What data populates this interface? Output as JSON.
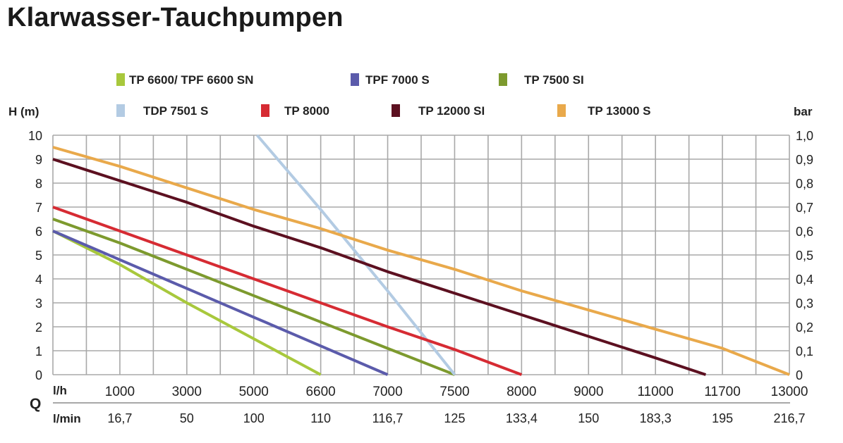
{
  "chart_data": {
    "type": "line",
    "title": "Klarwasser-Tauchpumpen",
    "ylabel_left": "H (m)",
    "ylabel_right": "bar",
    "xlabel": "Q",
    "x_row_labels": [
      "l/h",
      "l/min"
    ],
    "categories_lh": [
      "1000",
      "3000",
      "5000",
      "6600",
      "7000",
      "7500",
      "8000",
      "9000",
      "11000",
      "11700",
      "13000"
    ],
    "categories_lmin": [
      "16,7",
      "50",
      "100",
      "110",
      "116,7",
      "125",
      "133,4",
      "150",
      "183,3",
      "195",
      "216,7"
    ],
    "x_note": "x values are positions along the category axis (0 = origin, k = k-th category label)",
    "ylim": [
      0,
      10
    ],
    "yticks_left": [
      "0",
      "1",
      "2",
      "3",
      "4",
      "5",
      "6",
      "7",
      "8",
      "9",
      "10"
    ],
    "yticks_right": [
      "0",
      "0,1",
      "0,2",
      "0,3",
      "0,4",
      "0,5",
      "0,6",
      "0,7",
      "0,8",
      "0,9",
      "1,0"
    ],
    "grid": true,
    "legend_placement": "top",
    "series": [
      {
        "name": "TP 6600/ TPF 6600 SN",
        "color": "#a8c83c",
        "points": [
          [
            0,
            6
          ],
          [
            1,
            4.6
          ],
          [
            2,
            3.0
          ],
          [
            3,
            1.5
          ],
          [
            4,
            0
          ]
        ]
      },
      {
        "name": "TPF 7000 S",
        "color": "#5b5bab",
        "points": [
          [
            0,
            6
          ],
          [
            1,
            4.8
          ],
          [
            2,
            3.6
          ],
          [
            3,
            2.4
          ],
          [
            4,
            1.2
          ],
          [
            5,
            0
          ]
        ]
      },
      {
        "name": "TP 7500 SI",
        "color": "#7d9a2e",
        "points": [
          [
            0,
            6.5
          ],
          [
            1,
            5.5
          ],
          [
            2,
            4.4
          ],
          [
            3,
            3.3
          ],
          [
            4,
            2.2
          ],
          [
            5,
            1.1
          ],
          [
            6,
            0
          ]
        ]
      },
      {
        "name": "TDP 7501 S",
        "color": "#b3cbe3",
        "points": [
          [
            3.05,
            10
          ],
          [
            4,
            6.9
          ],
          [
            5,
            3.5
          ],
          [
            6,
            0
          ]
        ]
      },
      {
        "name": "TP 8000",
        "color": "#d62b33",
        "points": [
          [
            0,
            7
          ],
          [
            1,
            6
          ],
          [
            2,
            5
          ],
          [
            3,
            4
          ],
          [
            4,
            3
          ],
          [
            5,
            2
          ],
          [
            6,
            1.05
          ],
          [
            7,
            0
          ]
        ]
      },
      {
        "name": "TP 12000 SI",
        "color": "#5c1020",
        "points": [
          [
            0,
            9
          ],
          [
            1,
            8.1
          ],
          [
            2,
            7.2
          ],
          [
            3,
            6.2
          ],
          [
            4,
            5.3
          ],
          [
            5,
            4.3
          ],
          [
            6,
            3.4
          ],
          [
            7,
            2.5
          ],
          [
            8,
            1.6
          ],
          [
            9,
            0.7
          ],
          [
            9.75,
            0
          ]
        ]
      },
      {
        "name": "TP 13000 S",
        "color": "#e9a94b",
        "points": [
          [
            0,
            9.5
          ],
          [
            1,
            8.7
          ],
          [
            2,
            7.8
          ],
          [
            3,
            6.9
          ],
          [
            4,
            6.1
          ],
          [
            5,
            5.2
          ],
          [
            6,
            4.4
          ],
          [
            7,
            3.5
          ],
          [
            8,
            2.7
          ],
          [
            9,
            1.9
          ],
          [
            10,
            1.1
          ],
          [
            11,
            0
          ]
        ]
      }
    ]
  }
}
